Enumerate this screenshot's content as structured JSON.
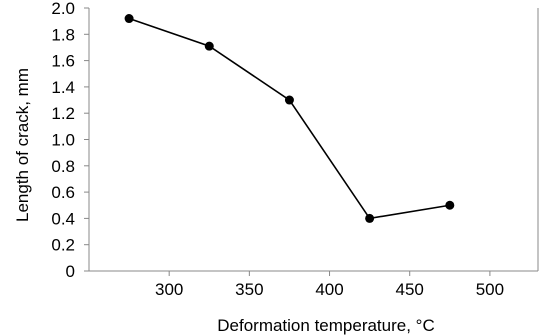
{
  "chart_data": {
    "type": "line",
    "title": "",
    "xlabel": "Deformation temperature, °C",
    "ylabel": "Length of crack, mm",
    "xlim": [
      250,
      530
    ],
    "ylim": [
      0,
      2.0
    ],
    "x_ticks": [
      300,
      350,
      400,
      450,
      500
    ],
    "y_ticks": [
      0,
      0.2,
      0.4,
      0.6,
      0.8,
      1.0,
      1.2,
      1.4,
      1.6,
      1.8,
      2.0
    ],
    "x_tick_labels": [
      "300",
      "350",
      "400",
      "450",
      "500"
    ],
    "y_tick_labels": [
      "0",
      "0.2",
      "0.4",
      "0.6",
      "0.8",
      "1.0",
      "1.2",
      "1.4",
      "1.6",
      "1.8",
      "2.0"
    ],
    "grid": false,
    "series": [
      {
        "x": [
          275,
          325,
          375,
          425,
          475
        ],
        "y": [
          1.92,
          1.71,
          1.3,
          0.4,
          0.5
        ],
        "color": "#000000",
        "marker": "circle"
      }
    ]
  }
}
